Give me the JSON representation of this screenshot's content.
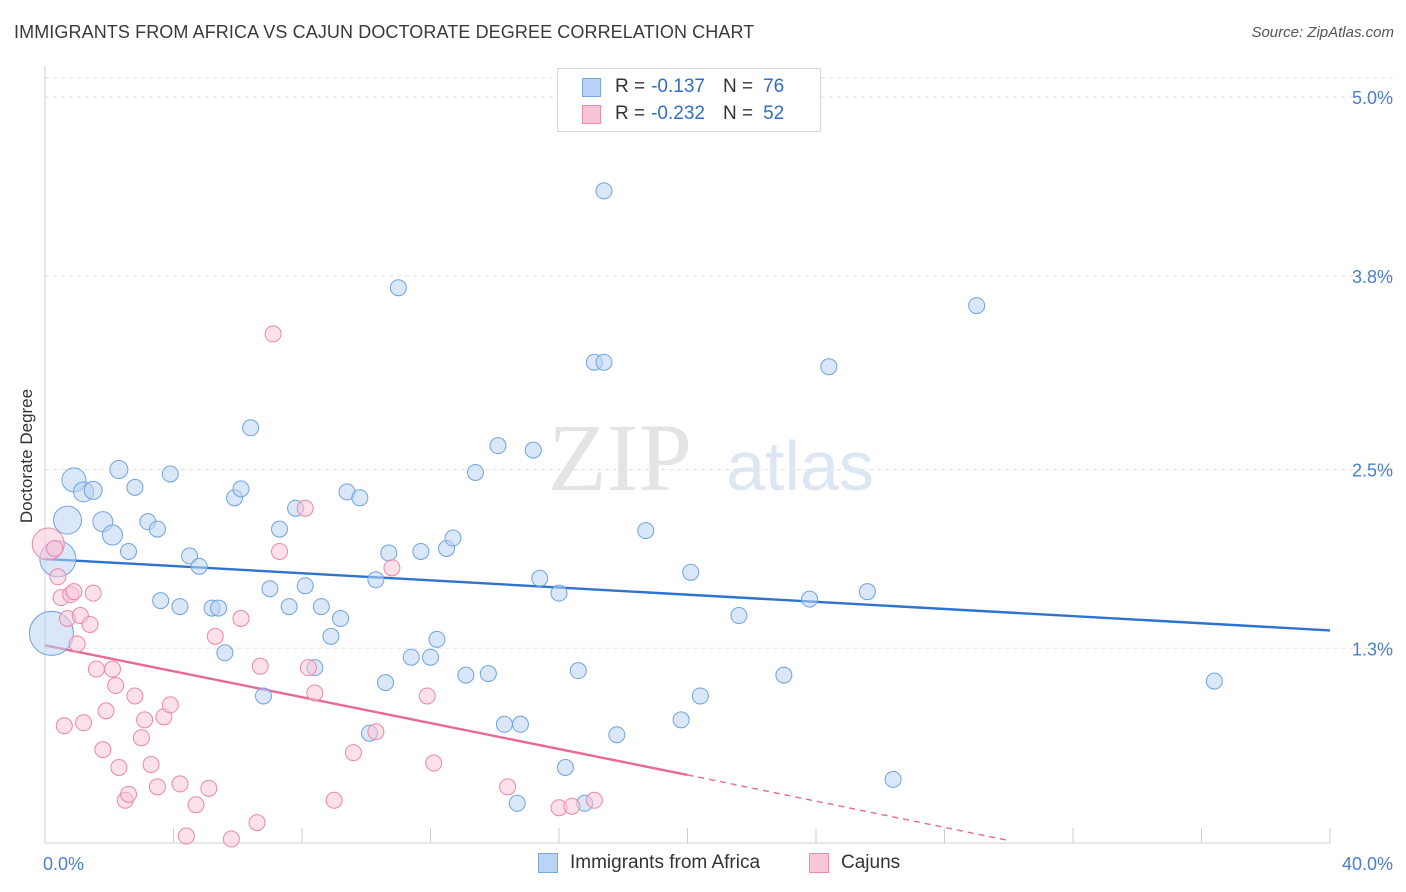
{
  "title": "IMMIGRANTS FROM AFRICA VS CAJUN DOCTORATE DEGREE CORRELATION CHART",
  "source": "Source: ZipAtlas.com",
  "watermark": {
    "part1": "ZIP",
    "part2": "atlas"
  },
  "legend": {
    "r_label": "R =",
    "n_label": "N =",
    "series": [
      {
        "r": "-0.137",
        "n": "76",
        "fill": "#b8d3f5",
        "stroke": "#7aa8e0"
      },
      {
        "r": "-0.232",
        "n": "52",
        "fill": "#f9c4d6",
        "stroke": "#ec8cab"
      }
    ]
  },
  "bottom_legend": [
    "Immigrants from Africa",
    "Cajuns"
  ],
  "chart_data": {
    "type": "scatter",
    "title": "IMMIGRANTS FROM AFRICA VS CAJUN DOCTORATE DEGREE CORRELATION CHART",
    "xlabel": "",
    "ylabel": "Doctorate Degree",
    "xlim": [
      0,
      40
    ],
    "ylim": [
      0,
      5.2
    ],
    "x_tick_labels": [
      "0.0%",
      "40.0%"
    ],
    "y_ticks": [
      1.3,
      2.5,
      3.8,
      5.0
    ],
    "y_tick_labels": [
      "1.3%",
      "2.5%",
      "3.8%",
      "5.0%"
    ],
    "grid": "horizontal dashed",
    "legend_position": "top-center",
    "series": [
      {
        "name": "Immigrants from Africa",
        "color": "#6fa3e0",
        "fill": "#bcd4f3",
        "trend": {
          "x": [
            0,
            40
          ],
          "y": [
            1.9,
            1.42
          ]
        },
        "points": [
          [
            0.2,
            1.4,
            22
          ],
          [
            0.4,
            1.9,
            18
          ],
          [
            0.7,
            2.16,
            14
          ],
          [
            0.9,
            2.43,
            12
          ],
          [
            1.2,
            2.35,
            10
          ],
          [
            1.5,
            2.36,
            9
          ],
          [
            1.8,
            2.15,
            10
          ],
          [
            2.1,
            2.06,
            10
          ],
          [
            2.3,
            2.5,
            9
          ],
          [
            2.6,
            1.95,
            8
          ],
          [
            2.8,
            2.38,
            8
          ],
          [
            3.2,
            2.15,
            8
          ],
          [
            3.5,
            2.1,
            8
          ],
          [
            3.6,
            1.62,
            8
          ],
          [
            3.9,
            2.47,
            8
          ],
          [
            4.2,
            1.58,
            8
          ],
          [
            4.5,
            1.92,
            8
          ],
          [
            4.8,
            1.85,
            8
          ],
          [
            5.2,
            1.57,
            8
          ],
          [
            5.4,
            1.57,
            8
          ],
          [
            5.6,
            1.27,
            8
          ],
          [
            5.9,
            2.31,
            8
          ],
          [
            6.1,
            2.37,
            8
          ],
          [
            6.4,
            2.78,
            8
          ],
          [
            6.8,
            0.98,
            8
          ],
          [
            7.0,
            1.7,
            8
          ],
          [
            7.3,
            2.1,
            8
          ],
          [
            7.6,
            1.58,
            8
          ],
          [
            7.8,
            2.24,
            8
          ],
          [
            8.1,
            1.72,
            8
          ],
          [
            8.4,
            1.17,
            8
          ],
          [
            8.6,
            1.58,
            8
          ],
          [
            8.9,
            1.38,
            8
          ],
          [
            9.2,
            1.5,
            8
          ],
          [
            9.4,
            2.35,
            8
          ],
          [
            9.8,
            2.31,
            8
          ],
          [
            10.1,
            0.73,
            8
          ],
          [
            10.3,
            1.76,
            8
          ],
          [
            10.6,
            1.07,
            8
          ],
          [
            10.7,
            1.94,
            8
          ],
          [
            11.0,
            3.72,
            8
          ],
          [
            11.4,
            1.24,
            8
          ],
          [
            11.7,
            1.95,
            8
          ],
          [
            12.0,
            1.24,
            8
          ],
          [
            12.2,
            1.36,
            8
          ],
          [
            12.5,
            1.97,
            8
          ],
          [
            12.7,
            2.04,
            8
          ],
          [
            13.1,
            1.12,
            8
          ],
          [
            13.4,
            2.48,
            8
          ],
          [
            13.8,
            1.13,
            8
          ],
          [
            14.1,
            2.66,
            8
          ],
          [
            14.3,
            0.79,
            8
          ],
          [
            14.7,
            0.26,
            8
          ],
          [
            14.8,
            0.79,
            8
          ],
          [
            15.2,
            2.63,
            8
          ],
          [
            15.4,
            1.77,
            8
          ],
          [
            16.0,
            1.67,
            8
          ],
          [
            16.2,
            0.5,
            8
          ],
          [
            16.6,
            1.15,
            8
          ],
          [
            16.8,
            0.26,
            8
          ],
          [
            17.1,
            3.22,
            8
          ],
          [
            17.4,
            3.22,
            8
          ],
          [
            17.4,
            4.37,
            8
          ],
          [
            17.8,
            0.72,
            8
          ],
          [
            18.7,
            2.09,
            8
          ],
          [
            19.8,
            0.82,
            8
          ],
          [
            20.1,
            1.81,
            8
          ],
          [
            20.4,
            0.98,
            8
          ],
          [
            21.6,
            1.52,
            8
          ],
          [
            23.0,
            1.12,
            8
          ],
          [
            23.8,
            1.63,
            8
          ],
          [
            24.4,
            3.19,
            8
          ],
          [
            25.6,
            1.68,
            8
          ],
          [
            26.4,
            0.42,
            8
          ],
          [
            29.0,
            3.6,
            8
          ],
          [
            36.4,
            1.08,
            8
          ]
        ]
      },
      {
        "name": "Cajuns",
        "color": "#ec87a8",
        "fill": "#f9c7d8",
        "trend": {
          "x": [
            0,
            20
          ],
          "y": [
            1.32,
            0.45
          ]
        },
        "trend_dashed": {
          "x": [
            20,
            30
          ],
          "y": [
            0.45,
            0.01
          ]
        },
        "points": [
          [
            0.1,
            2.0,
            16
          ],
          [
            0.3,
            1.97,
            8
          ],
          [
            0.4,
            1.78,
            8
          ],
          [
            0.5,
            1.64,
            8
          ],
          [
            0.6,
            0.78,
            8
          ],
          [
            0.7,
            1.5,
            8
          ],
          [
            0.8,
            1.66,
            8
          ],
          [
            0.9,
            1.68,
            8
          ],
          [
            1.0,
            1.33,
            8
          ],
          [
            1.1,
            1.52,
            8
          ],
          [
            1.2,
            0.8,
            8
          ],
          [
            1.4,
            1.46,
            8
          ],
          [
            1.5,
            1.67,
            8
          ],
          [
            1.6,
            1.16,
            8
          ],
          [
            1.8,
            0.62,
            8
          ],
          [
            1.9,
            0.88,
            8
          ],
          [
            2.1,
            1.16,
            8
          ],
          [
            2.2,
            1.05,
            8
          ],
          [
            2.3,
            0.5,
            8
          ],
          [
            2.5,
            0.28,
            8
          ],
          [
            2.6,
            0.32,
            8
          ],
          [
            2.8,
            0.98,
            8
          ],
          [
            3.0,
            0.7,
            8
          ],
          [
            3.1,
            0.82,
            8
          ],
          [
            3.3,
            0.52,
            8
          ],
          [
            3.5,
            0.37,
            8
          ],
          [
            3.7,
            0.84,
            8
          ],
          [
            3.9,
            0.92,
            8
          ],
          [
            4.2,
            0.39,
            8
          ],
          [
            4.4,
            0.04,
            8
          ],
          [
            4.7,
            0.25,
            8
          ],
          [
            5.1,
            0.36,
            8
          ],
          [
            5.3,
            1.38,
            8
          ],
          [
            5.8,
            0.02,
            8
          ],
          [
            6.1,
            1.5,
            8
          ],
          [
            6.6,
            0.13,
            8
          ],
          [
            6.7,
            1.18,
            8
          ],
          [
            7.1,
            3.41,
            8
          ],
          [
            7.3,
            1.95,
            8
          ],
          [
            8.1,
            2.24,
            8
          ],
          [
            8.2,
            1.17,
            8
          ],
          [
            8.4,
            1.0,
            8
          ],
          [
            9.0,
            0.28,
            8
          ],
          [
            9.6,
            0.6,
            8
          ],
          [
            10.3,
            0.74,
            8
          ],
          [
            10.8,
            1.84,
            8
          ],
          [
            11.9,
            0.98,
            8
          ],
          [
            12.1,
            0.53,
            8
          ],
          [
            14.4,
            0.37,
            8
          ],
          [
            16.0,
            0.23,
            8
          ],
          [
            16.4,
            0.24,
            8
          ],
          [
            17.1,
            0.28,
            8
          ]
        ]
      }
    ]
  }
}
